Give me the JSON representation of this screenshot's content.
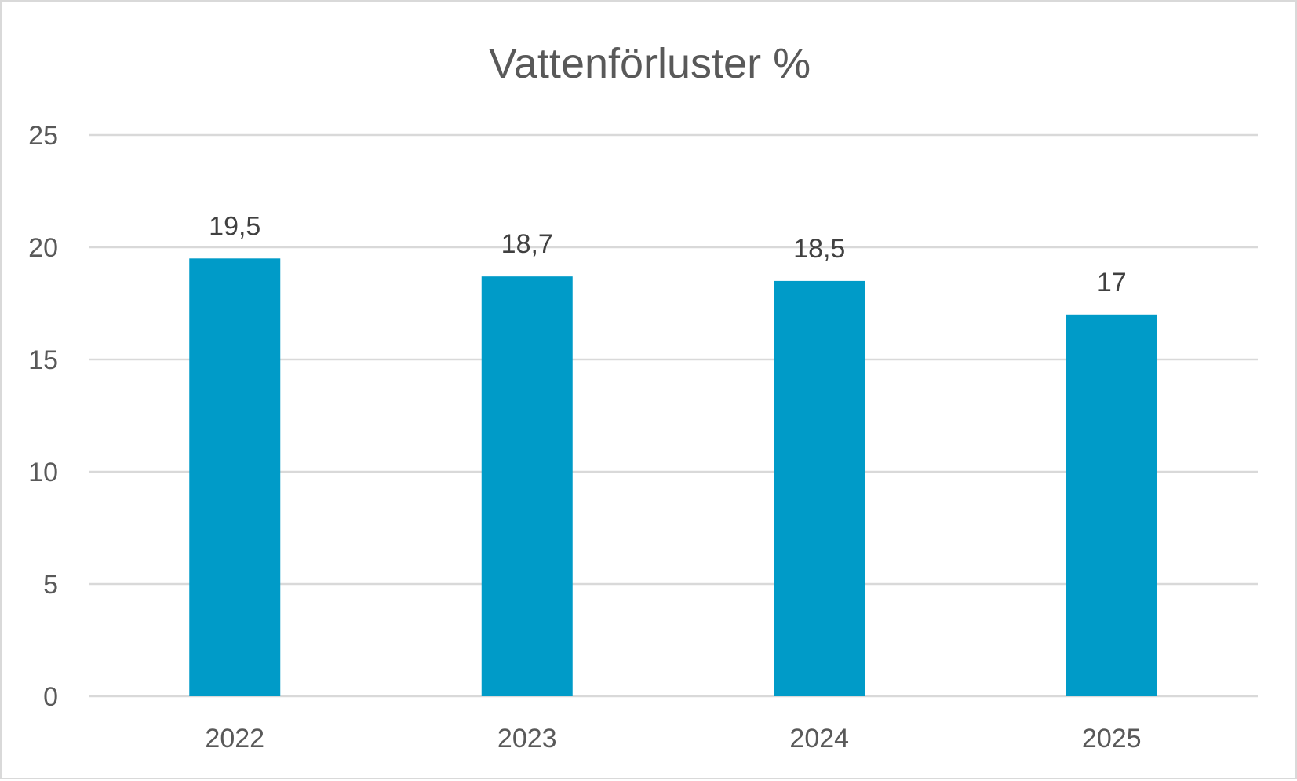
{
  "chart_data": {
    "type": "bar",
    "title": "Vattenförluster %",
    "xlabel": "",
    "ylabel": "",
    "categories": [
      "2022",
      "2023",
      "2024",
      "2025"
    ],
    "values": [
      19.5,
      18.7,
      18.5,
      17
    ],
    "data_labels": [
      "19,5",
      "18,7",
      "18,5",
      "17"
    ],
    "ylim": [
      0,
      25
    ],
    "y_ticks": [
      0,
      5,
      10,
      15,
      20,
      25
    ],
    "y_tick_labels": [
      "0",
      "5",
      "10",
      "15",
      "20",
      "25"
    ],
    "grid": true,
    "legend": "none",
    "bar_color": "#009bc8",
    "grid_color": "#d9d9d9"
  }
}
